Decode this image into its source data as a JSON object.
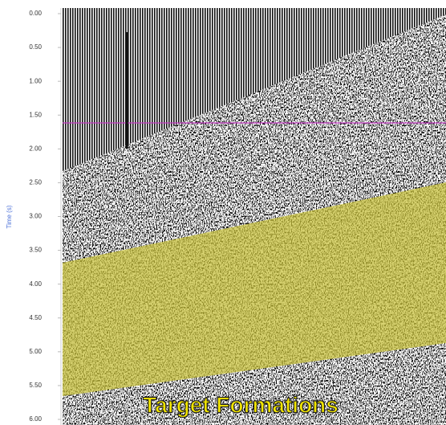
{
  "chart_data": {
    "type": "seismic",
    "ylabel": "Time (s)",
    "ylim": [
      0,
      6
    ],
    "yticks": [
      {
        "value": 0,
        "label": "0.00"
      },
      {
        "value": 0.5,
        "label": "0.50"
      },
      {
        "value": 1,
        "label": "1.00"
      },
      {
        "value": 1.5,
        "label": "1.50"
      },
      {
        "value": 2,
        "label": "2.00"
      },
      {
        "value": 2.5,
        "label": "2.50"
      },
      {
        "value": 3,
        "label": "3.00"
      },
      {
        "value": 3.5,
        "label": "3.50"
      },
      {
        "value": 4,
        "label": "4.00"
      },
      {
        "value": 4.5,
        "label": "4.50"
      },
      {
        "value": 5,
        "label": "5.00"
      },
      {
        "value": 5.5,
        "label": "5.50"
      },
      {
        "value": 6,
        "label": "6.00"
      }
    ],
    "annotation": "Target Formations"
  }
}
